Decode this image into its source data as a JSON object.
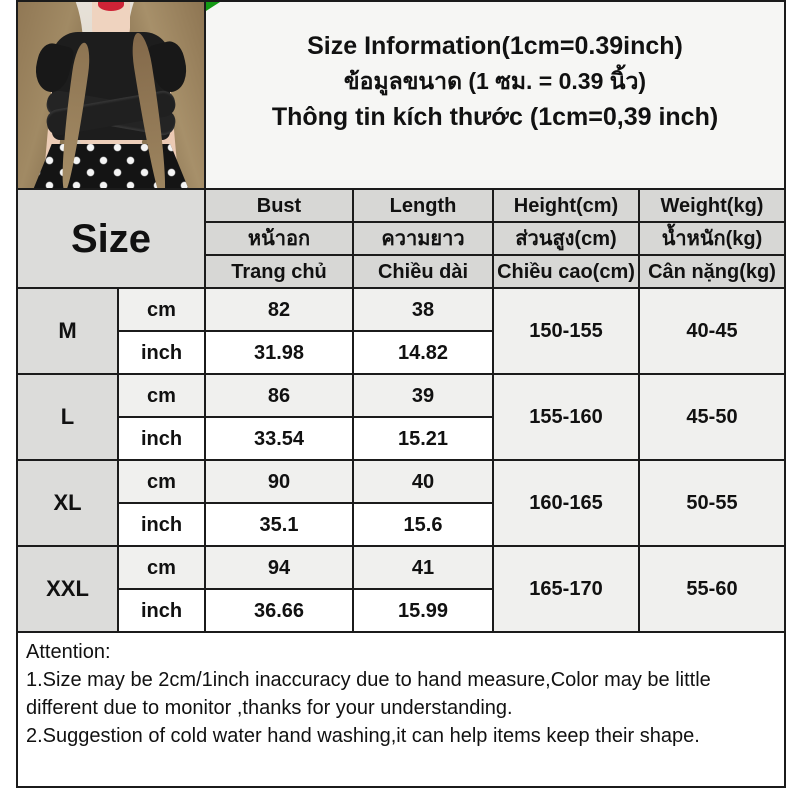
{
  "title": {
    "en": "Size Information(1cm=0.39inch)",
    "th": "ข้อมูลขนาด (1 ซม. = 0.39 นิ้ว)",
    "vi": "Thông tin kích thước (1cm=0,39 inch)"
  },
  "table": {
    "size_header": "Size",
    "columns": [
      {
        "en": "Bust",
        "th": "หน้าอก",
        "vi": "Trang chủ"
      },
      {
        "en": "Length",
        "th": "ความยาว",
        "vi": "Chiều dài"
      },
      {
        "en": "Height(cm)",
        "th": "ส่วนสูง(cm)",
        "vi": "Chiều cao(cm)"
      },
      {
        "en": "Weight(kg)",
        "th": "น้ำหนัก(kg)",
        "vi": "Cân nặng(kg)"
      }
    ],
    "unit_labels": {
      "cm": "cm",
      "inch": "inch"
    },
    "rows": [
      {
        "size": "M",
        "bust_cm": "82",
        "length_cm": "38",
        "bust_inch": "31.98",
        "length_inch": "14.82",
        "height": "150-155",
        "weight": "40-45"
      },
      {
        "size": "L",
        "bust_cm": "86",
        "length_cm": "39",
        "bust_inch": "33.54",
        "length_inch": "15.21",
        "height": "155-160",
        "weight": "45-50"
      },
      {
        "size": "XL",
        "bust_cm": "90",
        "length_cm": "40",
        "bust_inch": "35.1",
        "length_inch": "15.6",
        "height": "160-165",
        "weight": "50-55"
      },
      {
        "size": "XXL",
        "bust_cm": "94",
        "length_cm": "41",
        "bust_inch": "36.66",
        "length_inch": "15.99",
        "height": "165-170",
        "weight": "55-60"
      }
    ]
  },
  "attention": {
    "heading": "Attention:",
    "line1": "1.Size may be 2cm/1inch inaccuracy due to hand measure,Color may be little different due to monitor ,thanks for your understanding.",
    "line2": "2.Suggestion of cold water hand washing,it can help items keep their shape."
  },
  "photo": {
    "description": "model wearing black cross-wrap crop top and polka-dot pants"
  },
  "colors": {
    "grid_line": "#1b1b1b",
    "header_gray": "#d7d7d5",
    "row_light_gray": "#f0f0ee",
    "corner_flag_green": "#149a14",
    "photo_wall_beige": "#ddd5ca"
  }
}
